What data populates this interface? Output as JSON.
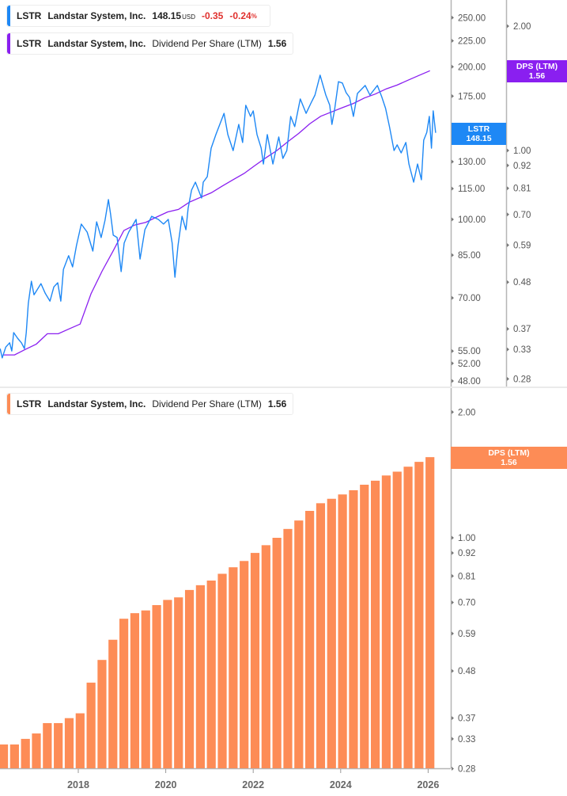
{
  "legends": {
    "price": {
      "ticker": "LSTR",
      "company": "Landstar System, Inc.",
      "price": "148.15",
      "currency": "USD",
      "change": "-0.35",
      "change_pct": "-0.24",
      "pct_sign": "%"
    },
    "dps_top": {
      "ticker": "LSTR",
      "company": "Landstar System, Inc.",
      "metric": "Dividend Per Share (LTM)",
      "value": "1.56"
    },
    "dps_bottom": {
      "ticker": "LSTR",
      "company": "Landstar System, Inc.",
      "metric": "Dividend Per Share (LTM)",
      "value": "1.56"
    }
  },
  "tags": {
    "price": {
      "line1": "LSTR",
      "line2": "148.15"
    },
    "dps_top": {
      "line1": "DPS (LTM)",
      "line2": "1.56"
    },
    "dps_bottom": {
      "line1": "DPS (LTM)",
      "line2": "1.56"
    }
  },
  "colors": {
    "price_line": "#1e88f5",
    "dps_line": "#8a1ff0",
    "bars": "#fd8c56",
    "negative": "#e0312e"
  },
  "chart_data": [
    {
      "type": "line",
      "scale": "log",
      "series": [
        {
          "name": "LSTR",
          "axis": "price",
          "points": [
            [
              "2016-03-18",
              55.6
            ],
            [
              "2016-04-05",
              53.3
            ],
            [
              "2016-05-04",
              56.0
            ],
            [
              "2016-06-06",
              57.1
            ],
            [
              "2016-06-24",
              55.0
            ],
            [
              "2016-07-09",
              59.8
            ],
            [
              "2016-08-11",
              58.3
            ],
            [
              "2016-09-13",
              57.1
            ],
            [
              "2016-10-08",
              55.6
            ],
            [
              "2016-10-23",
              59.8
            ],
            [
              "2016-11-10",
              68.3
            ],
            [
              "2016-12-05",
              75.5
            ],
            [
              "2016-12-27",
              71.0
            ],
            [
              "2017-02-24",
              74.7
            ],
            [
              "2017-03-29",
              71.5
            ],
            [
              "2017-05-08",
              69.0
            ],
            [
              "2017-06-10",
              73.6
            ],
            [
              "2017-07-12",
              75.0
            ],
            [
              "2017-08-07",
              69.0
            ],
            [
              "2017-08-29",
              79.7
            ],
            [
              "2017-10-12",
              84.8
            ],
            [
              "2017-11-14",
              80.6
            ],
            [
              "2017-12-16",
              88.8
            ],
            [
              "2018-01-26",
              97.9
            ],
            [
              "2018-03-14",
              94.4
            ],
            [
              "2018-05-01",
              86.6
            ],
            [
              "2018-06-02",
              98.9
            ],
            [
              "2018-07-09",
              92.1
            ],
            [
              "2018-08-11",
              99.6
            ],
            [
              "2018-09-09",
              109.4
            ],
            [
              "2018-09-27",
              102.5
            ],
            [
              "2018-10-19",
              93.1
            ],
            [
              "2018-11-21",
              92.1
            ],
            [
              "2018-12-24",
              78.9
            ],
            [
              "2019-01-19",
              89.8
            ],
            [
              "2019-02-27",
              94.4
            ],
            [
              "2019-04-27",
              100.0
            ],
            [
              "2019-05-30",
              83.5
            ],
            [
              "2019-07-09",
              95.4
            ],
            [
              "2019-09-05",
              101.4
            ],
            [
              "2019-10-30",
              100.0
            ],
            [
              "2019-12-13",
              97.9
            ],
            [
              "2020-01-22",
              100.0
            ],
            [
              "2020-02-24",
              89.8
            ],
            [
              "2020-03-17",
              76.9
            ],
            [
              "2020-04-12",
              88.8
            ],
            [
              "2020-05-15",
              101.4
            ],
            [
              "2020-06-17",
              95.4
            ],
            [
              "2020-07-05",
              105.2
            ],
            [
              "2020-08-03",
              114.2
            ],
            [
              "2020-09-05",
              118.4
            ],
            [
              "2020-10-26",
              110.2
            ],
            [
              "2020-11-10",
              118.4
            ],
            [
              "2020-12-13",
              121.4
            ],
            [
              "2021-01-15",
              138.2
            ],
            [
              "2021-02-24",
              147.0
            ],
            [
              "2021-05-01",
              161.9
            ],
            [
              "2021-06-02",
              147.0
            ],
            [
              "2021-07-16",
              136.7
            ],
            [
              "2021-09-02",
              153.9
            ],
            [
              "2021-10-04",
              141.8
            ],
            [
              "2021-10-30",
              167.9
            ],
            [
              "2021-12-09",
              159.6
            ],
            [
              "2022-01-01",
              163.7
            ],
            [
              "2022-02-02",
              147.0
            ],
            [
              "2022-03-07",
              138.2
            ],
            [
              "2022-03-25",
              128.6
            ],
            [
              "2022-04-27",
              147.0
            ],
            [
              "2022-06-13",
              128.6
            ],
            [
              "2022-08-01",
              145.4
            ],
            [
              "2022-09-05",
              131.9
            ],
            [
              "2022-10-08",
              136.7
            ],
            [
              "2022-11-10",
              159.6
            ],
            [
              "2022-12-13",
              152.4
            ],
            [
              "2023-01-29",
              172.8
            ],
            [
              "2023-03-17",
              161.9
            ],
            [
              "2023-04-27",
              169.7
            ],
            [
              "2023-05-30",
              175.9
            ],
            [
              "2023-07-12",
              192.5
            ],
            [
              "2023-08-29",
              175.9
            ],
            [
              "2023-10-01",
              167.9
            ],
            [
              "2023-10-19",
              153.9
            ],
            [
              "2023-11-10",
              163.7
            ],
            [
              "2023-12-13",
              186.9
            ],
            [
              "2024-01-15",
              185.8
            ],
            [
              "2024-02-16",
              177.8
            ],
            [
              "2024-03-14",
              174.1
            ],
            [
              "2024-04-16",
              159.6
            ],
            [
              "2024-05-19",
              177.2
            ],
            [
              "2024-07-23",
              183.7
            ],
            [
              "2024-09-02",
              175.9
            ],
            [
              "2024-11-03",
              183.7
            ],
            [
              "2024-12-09",
              174.6
            ],
            [
              "2025-01-11",
              165.5
            ],
            [
              "2025-02-13",
              152.4
            ],
            [
              "2025-03-21",
              136.7
            ],
            [
              "2025-04-16",
              140.3
            ],
            [
              "2025-05-19",
              135.3
            ],
            [
              "2025-06-28",
              141.8
            ],
            [
              "2025-07-23",
              128.6
            ],
            [
              "2025-09-02",
              118.4
            ],
            [
              "2025-10-04",
              128.6
            ],
            [
              "2025-11-06",
              119.7
            ],
            [
              "2025-11-25",
              143.3
            ],
            [
              "2025-12-20",
              148.5
            ],
            [
              "2026-01-11",
              159.6
            ],
            [
              "2026-01-29",
              138.2
            ],
            [
              "2026-02-13",
              163.7
            ],
            [
              "2026-03-03",
              148.15
            ]
          ]
        },
        {
          "name": "Dividend Per Share (LTM)",
          "axis": "dps",
          "source": "bars"
        }
      ],
      "price_axis_ticks": [
        "250.00",
        "225.00",
        "200.00",
        "175.00",
        "130.00",
        "115.00",
        "100.00",
        "85.00",
        "70.00",
        "55.00",
        "52.00",
        "48.00"
      ],
      "price_axis_range": [
        48,
        270
      ],
      "dps_axis_ticks": [
        "2.00",
        "1.00",
        "0.92",
        "0.81",
        "0.70",
        "0.59",
        "0.48",
        "0.37",
        "0.33",
        "0.28"
      ],
      "dps_axis_range": [
        0.28,
        2.2
      ],
      "grid": false
    },
    {
      "type": "bar",
      "scale": "log",
      "series": [
        {
          "name": "Dividend Per Share (LTM)",
          "x": [
            "2016-04",
            "2016-07",
            "2016-10",
            "2017-01",
            "2017-04",
            "2017-07",
            "2017-10",
            "2018-01",
            "2018-04",
            "2018-07",
            "2018-10",
            "2019-01",
            "2019-04",
            "2019-07",
            "2019-10",
            "2020-01",
            "2020-04",
            "2020-07",
            "2020-10",
            "2021-01",
            "2021-04",
            "2021-07",
            "2021-10",
            "2022-01",
            "2022-04",
            "2022-07",
            "2022-10",
            "2023-01",
            "2023-04",
            "2023-07",
            "2023-10",
            "2024-01",
            "2024-04",
            "2024-07",
            "2024-10",
            "2025-01",
            "2025-04",
            "2025-07",
            "2025-10",
            "2026-01"
          ],
          "values": [
            0.32,
            0.32,
            0.33,
            0.34,
            0.36,
            0.36,
            0.37,
            0.38,
            0.45,
            0.51,
            0.57,
            0.64,
            0.66,
            0.67,
            0.69,
            0.71,
            0.72,
            0.75,
            0.77,
            0.79,
            0.82,
            0.85,
            0.88,
            0.92,
            0.96,
            1.0,
            1.05,
            1.1,
            1.16,
            1.21,
            1.24,
            1.27,
            1.3,
            1.34,
            1.37,
            1.41,
            1.44,
            1.48,
            1.52,
            1.56
          ]
        }
      ],
      "y_axis_ticks": [
        "2.00",
        "1.00",
        "0.92",
        "0.81",
        "0.70",
        "0.59",
        "0.48",
        "0.37",
        "0.33",
        "0.28"
      ],
      "x_axis_ticks": [
        "2018",
        "2020",
        "2022",
        "2024",
        "2026"
      ],
      "ylim": [
        0.28,
        2.2
      ],
      "grid": false
    }
  ]
}
